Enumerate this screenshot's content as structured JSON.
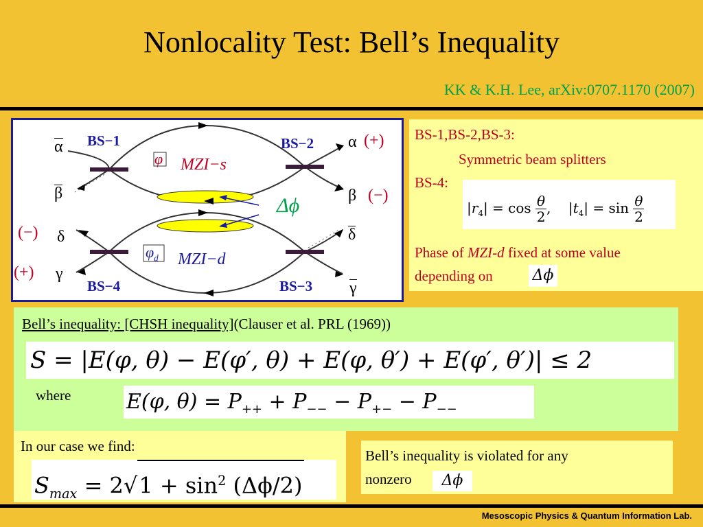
{
  "slide": {
    "title": "Nonlocality Test: Bell’s Inequality",
    "citation": "KK & K.H. Lee, arXiv:0707.1170 (2007)"
  },
  "diagram": {
    "bs1": "BS−1",
    "bs2": "BS−2",
    "bs3": "BS−3",
    "bs4": "BS−4",
    "mzi_s": "MZI−s",
    "mzi_d": "MZI−d",
    "phi": "φ",
    "phi_d": "φ",
    "phi_d_sub": "d",
    "delta_phi": "Δϕ",
    "alpha": "α",
    "alpha_bar": "α",
    "beta": "β",
    "beta_bar": "β",
    "gamma": "γ",
    "gamma_bar": "γ",
    "delta": "δ",
    "delta_bar": "δ",
    "plus": "(+)",
    "minus": "(−)"
  },
  "bs_info": {
    "line1": "BS-1,BS-2,BS-3:",
    "line2": "Symmetric beam splitters",
    "line3": "BS-4:",
    "phase_line1_pre": "Phase of ",
    "phase_line1_em": "MZI-d",
    "phase_line1_post": " fixed at some value",
    "phase_line2": "depending on",
    "eq_r4": "|r",
    "eq_r4_sub": "4",
    "eq_cos": "| = cos",
    "eq_t4": "|t",
    "eq_t4_sub": "4",
    "eq_sin": "| = sin",
    "frac_num": "θ",
    "frac_den": "2",
    "delta_phi": "Δϕ"
  },
  "bell": {
    "heading": "Bell’s inequality: [CHSH inequality]",
    "heading_cite": "(Clauser et al. PRL (1969))",
    "chsh": "S  =  |E(φ, θ) − E(φ′, θ) + E(φ, θ′) + E(φ′, θ′)| ≤ 2",
    "where": "where",
    "e_lhs": "E(φ, θ)  =  P",
    "e_s1": "++",
    "e_p2": " + P",
    "e_s2": "−−",
    "e_p3": " − P",
    "e_s3": "+−",
    "e_p4": " − P",
    "e_s4": "−−"
  },
  "case": {
    "text": "In our case we find:",
    "s": "S",
    "s_sub": "max",
    "eq_mid": "  =  2",
    "sqrt_body": "1 + sin",
    "sqrt_sup": "2",
    "sqrt_tail": " (Δϕ/2)"
  },
  "violation": {
    "line1": "Bell’s inequality is violated for any",
    "line2": "nonzero",
    "delta_phi": "Δϕ"
  },
  "footer": "Mesoscopic Physics &  Quantum Information  Lab.",
  "colors": {
    "background": "#f2c233",
    "panel_yellow": "#ffff99",
    "panel_green": "#ccff99",
    "diagram_border": "#1a1aa0",
    "label_red": "#c00020",
    "label_blue": "#1a1aa0",
    "citation_green": "#00a04a"
  }
}
